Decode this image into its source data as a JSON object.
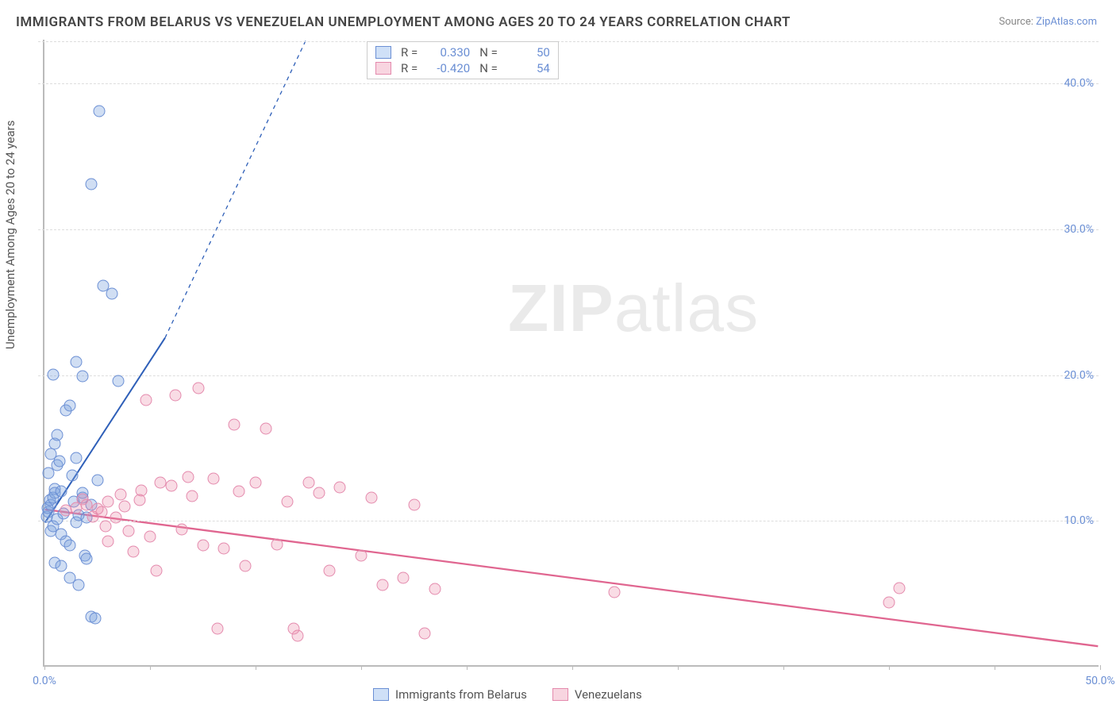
{
  "title": "IMMIGRANTS FROM BELARUS VS VENEZUELAN UNEMPLOYMENT AMONG AGES 20 TO 24 YEARS CORRELATION CHART",
  "source_prefix": "Source: ",
  "source_link": "ZipAtlas.com",
  "ylabel": "Unemployment Among Ages 20 to 24 years",
  "watermark_a": "ZIP",
  "watermark_b": "atlas",
  "chart": {
    "type": "scatter",
    "xlim": [
      0,
      50
    ],
    "ylim": [
      0,
      43
    ],
    "y_ticks": [
      10,
      20,
      30,
      40
    ],
    "y_tick_labels": [
      "10.0%",
      "20.0%",
      "30.0%",
      "40.0%"
    ],
    "x_ticks": [
      0,
      25,
      50
    ],
    "x_tick_labels": [
      "0.0%",
      "",
      "50.0%"
    ],
    "x_minor_ticks": [
      0,
      5,
      10,
      15,
      20,
      25,
      30,
      35,
      40,
      45,
      50
    ],
    "grid_color": "#dddddd",
    "axis_color": "#bbbbbb",
    "background_color": "#ffffff",
    "series": [
      {
        "key": "belarus",
        "label": "Immigrants from Belarus",
        "color_fill": "rgba(120,160,220,0.35)",
        "color_stroke": "#6b8fd4",
        "swatch_fill": "#cfe0f7",
        "swatch_stroke": "#6b8fd4",
        "R": "0.330",
        "N": "50",
        "trend": {
          "x1": 0,
          "y1": 9.8,
          "x2": 5.7,
          "y2": 22.5,
          "dash_x2": 12.4,
          "dash_y2": 43,
          "color": "#2E5FB8",
          "width": 2
        },
        "points": [
          [
            0.1,
            10.2
          ],
          [
            0.2,
            10.5
          ],
          [
            0.3,
            11.0
          ],
          [
            0.15,
            10.8
          ],
          [
            0.25,
            11.3
          ],
          [
            0.4,
            11.5
          ],
          [
            0.5,
            12.1
          ],
          [
            0.6,
            13.7
          ],
          [
            0.7,
            14.0
          ],
          [
            0.3,
            9.2
          ],
          [
            0.4,
            9.5
          ],
          [
            0.8,
            9.0
          ],
          [
            1.0,
            8.5
          ],
          [
            1.2,
            8.2
          ],
          [
            0.5,
            11.8
          ],
          [
            1.4,
            11.2
          ],
          [
            1.5,
            9.8
          ],
          [
            1.6,
            10.3
          ],
          [
            1.8,
            11.5
          ],
          [
            2.0,
            10.1
          ],
          [
            0.2,
            13.2
          ],
          [
            0.3,
            14.5
          ],
          [
            0.5,
            15.2
          ],
          [
            0.6,
            15.8
          ],
          [
            1.0,
            17.5
          ],
          [
            1.2,
            17.8
          ],
          [
            1.5,
            14.2
          ],
          [
            1.8,
            11.8
          ],
          [
            2.2,
            11.0
          ],
          [
            2.5,
            12.7
          ],
          [
            0.4,
            19.9
          ],
          [
            1.8,
            19.8
          ],
          [
            3.5,
            19.5
          ],
          [
            1.5,
            20.8
          ],
          [
            2.8,
            26.0
          ],
          [
            3.2,
            25.5
          ],
          [
            2.2,
            33.0
          ],
          [
            2.6,
            38.0
          ],
          [
            0.5,
            7.0
          ],
          [
            0.8,
            6.8
          ],
          [
            1.2,
            6.0
          ],
          [
            1.6,
            5.5
          ],
          [
            2.2,
            3.3
          ],
          [
            2.4,
            3.2
          ],
          [
            1.9,
            7.5
          ],
          [
            2.0,
            7.3
          ],
          [
            0.8,
            11.9
          ],
          [
            1.3,
            13.0
          ],
          [
            0.6,
            10.0
          ],
          [
            0.9,
            10.4
          ]
        ]
      },
      {
        "key": "venezuelans",
        "label": "Venezuelans",
        "color_fill": "rgba(235,140,170,0.30)",
        "color_stroke": "#e48aad",
        "swatch_fill": "#f8d5e0",
        "swatch_stroke": "#e48aad",
        "R": "-0.420",
        "N": "54",
        "trend": {
          "x1": 0,
          "y1": 10.7,
          "x2": 50,
          "y2": 1.3,
          "color": "#e06690",
          "width": 2.3
        },
        "points": [
          [
            1.0,
            10.6
          ],
          [
            1.5,
            10.8
          ],
          [
            2.0,
            11.0
          ],
          [
            2.3,
            10.2
          ],
          [
            2.7,
            10.5
          ],
          [
            3.0,
            11.2
          ],
          [
            3.4,
            10.1
          ],
          [
            3.8,
            10.9
          ],
          [
            4.0,
            9.2
          ],
          [
            4.5,
            11.3
          ],
          [
            5.0,
            8.8
          ],
          [
            5.5,
            12.5
          ],
          [
            6.0,
            12.3
          ],
          [
            6.5,
            9.3
          ],
          [
            7.0,
            11.6
          ],
          [
            7.5,
            8.2
          ],
          [
            8.0,
            12.8
          ],
          [
            8.5,
            8.0
          ],
          [
            9.0,
            16.5
          ],
          [
            9.5,
            6.8
          ],
          [
            10.0,
            12.5
          ],
          [
            10.5,
            16.2
          ],
          [
            11.0,
            8.3
          ],
          [
            11.5,
            11.2
          ],
          [
            12.0,
            2.0
          ],
          [
            3.0,
            8.5
          ],
          [
            4.2,
            7.8
          ],
          [
            5.3,
            6.5
          ],
          [
            6.2,
            18.5
          ],
          [
            7.3,
            19.0
          ],
          [
            8.2,
            2.5
          ],
          [
            13.0,
            11.8
          ],
          [
            13.5,
            6.5
          ],
          [
            14.0,
            12.2
          ],
          [
            15.0,
            7.5
          ],
          [
            15.5,
            11.5
          ],
          [
            16.0,
            5.5
          ],
          [
            17.0,
            6.0
          ],
          [
            17.5,
            11.0
          ],
          [
            18.0,
            2.2
          ],
          [
            18.5,
            5.2
          ],
          [
            11.8,
            2.5
          ],
          [
            27.0,
            5.0
          ],
          [
            4.8,
            18.2
          ],
          [
            2.5,
            10.7
          ],
          [
            1.8,
            11.4
          ],
          [
            3.6,
            11.7
          ],
          [
            4.6,
            12.0
          ],
          [
            2.9,
            9.5
          ],
          [
            40.0,
            4.3
          ],
          [
            40.5,
            5.3
          ],
          [
            6.8,
            12.9
          ],
          [
            9.2,
            11.9
          ],
          [
            12.5,
            12.5
          ]
        ]
      }
    ]
  },
  "legend_top_labels": {
    "R": "R =",
    "N": "N ="
  }
}
